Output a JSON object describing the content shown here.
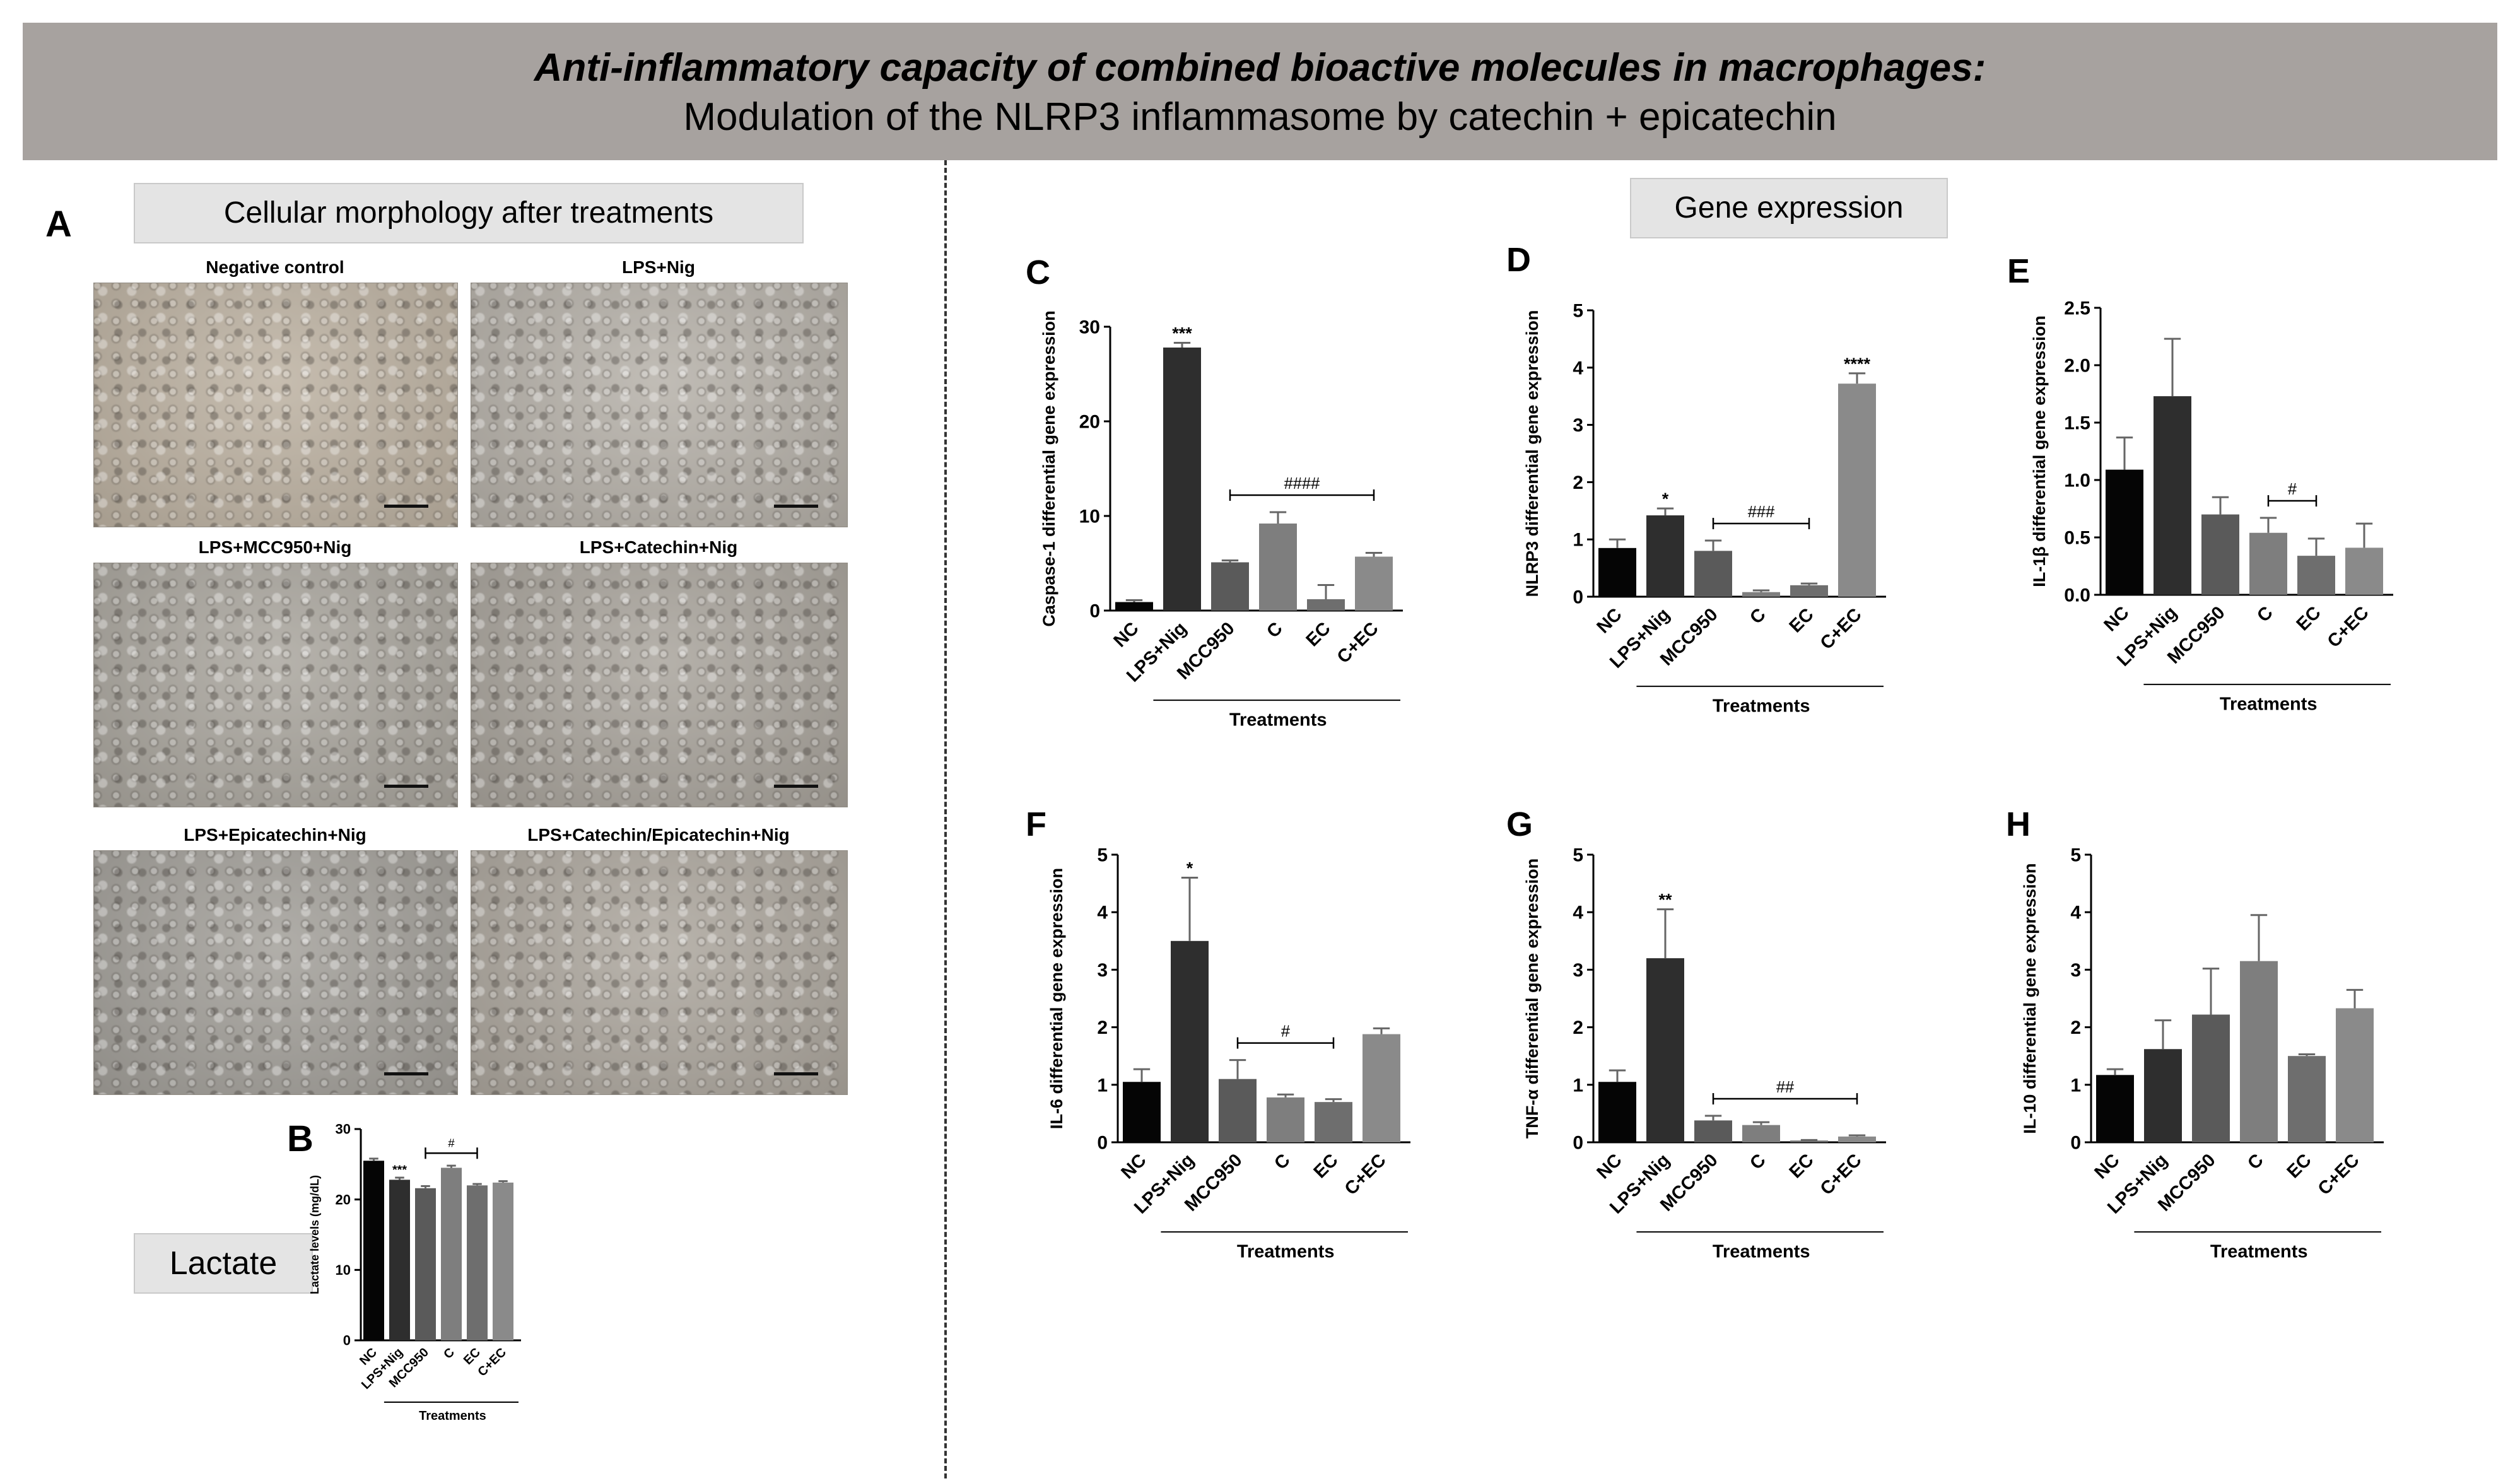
{
  "header": {
    "title": "Anti-inflammatory capacity of combined bioactive molecules in macrophages:",
    "subtitle": "Modulation of the NLRP3 inflammasome by catechin + epicatechin"
  },
  "section_a": {
    "letter": "A",
    "heading": "Cellular morphology after treatments",
    "images": [
      {
        "label": "Negative control",
        "tone": "#bdb2a2"
      },
      {
        "label": "LPS+Nig",
        "tone": "#b6b1a9"
      },
      {
        "label": "LPS+MCC950+Nig",
        "tone": "#aaa69e"
      },
      {
        "label": "LPS+Catechin+Nig",
        "tone": "#a9a49c"
      },
      {
        "label": "LPS+Epicatechin+Nig",
        "tone": "#a3a09a"
      },
      {
        "label": "LPS+Catechin/Epicatechin+Nig",
        "tone": "#ada79e"
      }
    ]
  },
  "lactate_box": "Lactate",
  "gene_box": "Gene expression",
  "colors": [
    "#050505",
    "#2e2e2e",
    "#5a5a5a",
    "#7e7e7e",
    "#6e6e6e",
    "#8a8a8a"
  ],
  "chart_data": [
    {
      "panel": "B",
      "type": "bar",
      "categories": [
        "NC",
        "LPS+Nig",
        "MCC950",
        "C",
        "EC",
        "C+EC"
      ],
      "values": [
        25.5,
        22.8,
        21.6,
        24.5,
        22.0,
        22.4
      ],
      "errors": [
        0.3,
        0.3,
        0.3,
        0.3,
        0.2,
        0.2
      ],
      "ylabel": "Lactate levels (mg/dL)",
      "xlabel": "Treatments",
      "ylim": [
        0,
        30
      ],
      "yticks": [
        "0",
        "10",
        "20",
        "30"
      ],
      "stars": [
        {
          "index": 1,
          "text": "***"
        }
      ],
      "hash": {
        "from": 2,
        "to": 4,
        "text": "#"
      }
    },
    {
      "panel": "C",
      "type": "bar",
      "categories": [
        "NC",
        "LPS+Nig",
        "MCC950",
        "C",
        "EC",
        "C+EC"
      ],
      "values": [
        0.9,
        27.8,
        5.1,
        9.2,
        1.2,
        5.7
      ],
      "errors": [
        0.2,
        0.5,
        0.2,
        1.2,
        1.5,
        0.4
      ],
      "ylabel": "Caspase-1 differential gene expression",
      "xlabel": "Treatments",
      "ylim": [
        0,
        30
      ],
      "yticks": [
        "0",
        "10",
        "20",
        "30"
      ],
      "stars": [
        {
          "index": 1,
          "text": "***"
        }
      ],
      "hash": {
        "from": 2,
        "to": 5,
        "text": "####"
      }
    },
    {
      "panel": "D",
      "type": "bar",
      "categories": [
        "NC",
        "LPS+Nig",
        "MCC950",
        "C",
        "EC",
        "C+EC"
      ],
      "values": [
        0.85,
        1.42,
        0.8,
        0.08,
        0.2,
        3.72
      ],
      "errors": [
        0.15,
        0.12,
        0.18,
        0.03,
        0.03,
        0.18
      ],
      "ylabel": "NLRP3 differential gene expression",
      "xlabel": "Treatments",
      "ylim": [
        0,
        5
      ],
      "yticks": [
        "0",
        "1",
        "2",
        "3",
        "4",
        "5"
      ],
      "stars": [
        {
          "index": 1,
          "text": "*"
        },
        {
          "index": 5,
          "text": "****"
        }
      ],
      "hash": {
        "from": 2,
        "to": 4,
        "text": "###"
      }
    },
    {
      "panel": "E",
      "type": "bar",
      "categories": [
        "NC",
        "LPS+Nig",
        "MCC950",
        "C",
        "EC",
        "C+EC"
      ],
      "values": [
        1.09,
        1.73,
        0.7,
        0.54,
        0.34,
        0.41
      ],
      "errors": [
        0.28,
        0.5,
        0.15,
        0.13,
        0.15,
        0.21
      ],
      "ylabel": "IL-1β differential gene expression",
      "xlabel": "Treatments",
      "ylim": [
        0,
        2.5
      ],
      "yticks": [
        "0.0",
        "0.5",
        "1.0",
        "1.5",
        "2.0",
        "2.5"
      ],
      "stars": [],
      "hash": {
        "from": 3,
        "to": 4,
        "text": "#"
      }
    },
    {
      "panel": "F",
      "type": "bar",
      "categories": [
        "NC",
        "LPS+Nig",
        "MCC950",
        "C",
        "EC",
        "C+EC"
      ],
      "values": [
        1.05,
        3.5,
        1.1,
        0.78,
        0.7,
        1.88
      ],
      "errors": [
        0.22,
        1.1,
        0.33,
        0.05,
        0.05,
        0.1
      ],
      "ylabel": "IL-6 differential gene expression",
      "xlabel": "Treatments",
      "ylim": [
        0,
        5
      ],
      "yticks": [
        "0",
        "1",
        "2",
        "3",
        "4",
        "5"
      ],
      "stars": [
        {
          "index": 1,
          "text": "*"
        }
      ],
      "hash": {
        "from": 2,
        "to": 4,
        "text": "#"
      }
    },
    {
      "panel": "G",
      "type": "bar",
      "categories": [
        "NC",
        "LPS+Nig",
        "MCC950",
        "C",
        "EC",
        "C+EC"
      ],
      "values": [
        1.05,
        3.2,
        0.38,
        0.3,
        0.03,
        0.1
      ],
      "errors": [
        0.2,
        0.85,
        0.08,
        0.05,
        0.01,
        0.02
      ],
      "ylabel": "TNF-α differential gene expression",
      "xlabel": "Treatments",
      "ylim": [
        0,
        5
      ],
      "yticks": [
        "0",
        "1",
        "2",
        "3",
        "4",
        "5"
      ],
      "stars": [
        {
          "index": 1,
          "text": "**"
        }
      ],
      "hash": {
        "from": 2,
        "to": 5,
        "text": "##"
      }
    },
    {
      "panel": "H",
      "type": "bar",
      "categories": [
        "NC",
        "LPS+Nig",
        "MCC950",
        "C",
        "EC",
        "C+EC"
      ],
      "values": [
        1.17,
        1.62,
        2.22,
        3.15,
        1.5,
        2.33
      ],
      "errors": [
        0.1,
        0.5,
        0.8,
        0.8,
        0.03,
        0.32
      ],
      "ylabel": "IL-10 differential gene expression",
      "xlabel": "Treatments",
      "ylim": [
        0,
        5
      ],
      "yticks": [
        "0",
        "1",
        "2",
        "3",
        "4",
        "5"
      ],
      "stars": [],
      "hash": null
    }
  ]
}
